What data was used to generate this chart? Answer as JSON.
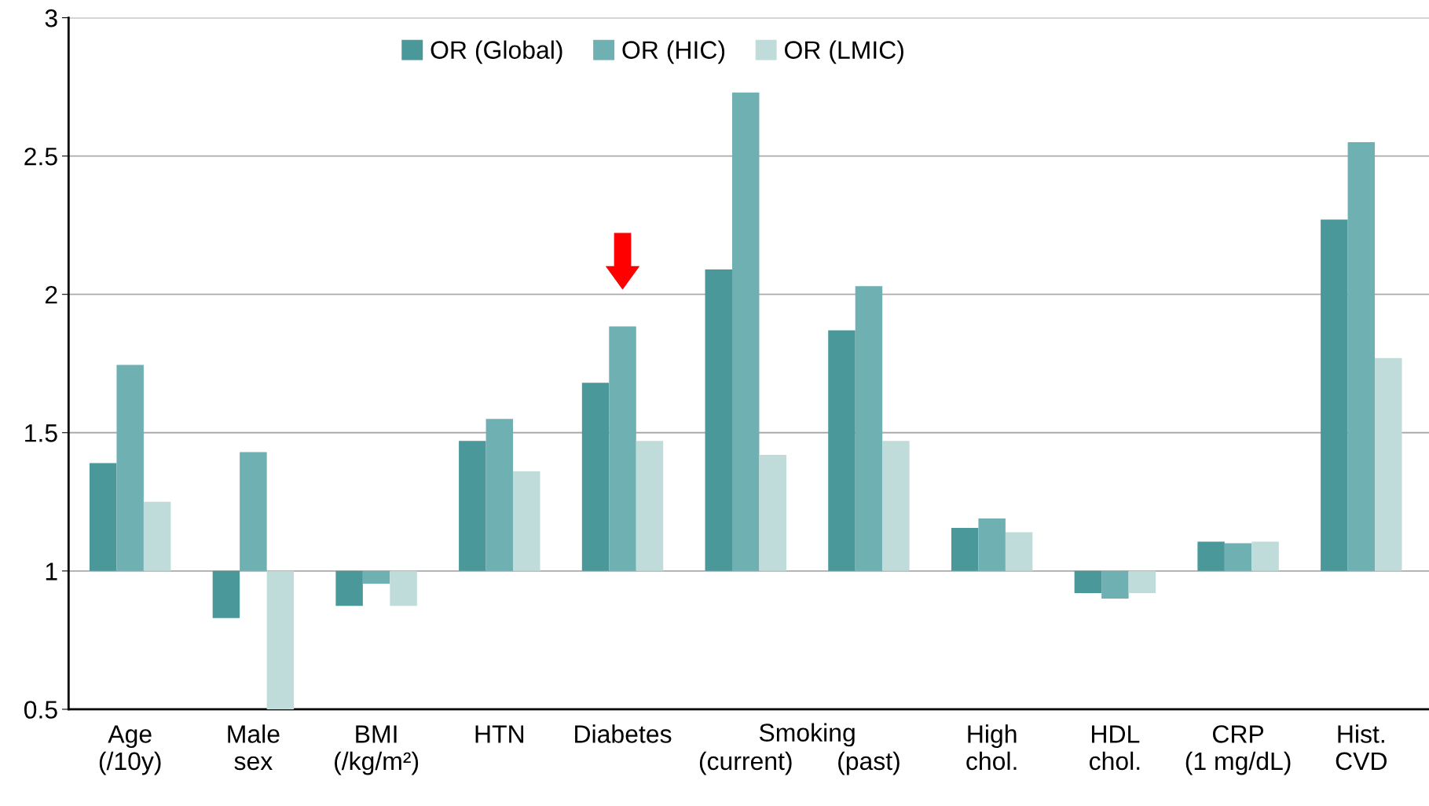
{
  "chart_data": {
    "type": "bar",
    "categories": [
      "Age\n(/10y)",
      "Male\nsex",
      "BMI\n(/kg/m²)",
      "HTN",
      "Diabetes",
      "\n(current)",
      "\n(past)",
      "High\nchol.",
      "HDL\nchol.",
      "CRP\n(1 mg/dL)",
      "Hist.\nCVD"
    ],
    "series": [
      {
        "name": "OR (Global)",
        "color": "#4a9899",
        "base": [
          1,
          1,
          1,
          1,
          1,
          1,
          1,
          1,
          1,
          1,
          1
        ],
        "values": [
          0.39,
          -0.17,
          -0.126,
          0.47,
          0.68,
          1.09,
          0.87,
          0.156,
          -0.08,
          0.106,
          1.27
        ]
      },
      {
        "name": "OR (HIC)",
        "color": "#6fb0b3",
        "base": [
          1,
          1,
          1,
          1,
          1,
          1,
          1,
          1,
          1,
          1,
          1
        ],
        "values": [
          0.745,
          0.43,
          -0.046,
          0.55,
          0.884,
          1.73,
          1.03,
          0.19,
          -0.1,
          0.1,
          1.55
        ]
      },
      {
        "name": "OR (LMIC)",
        "color": "#c0dcda",
        "base": [
          1,
          1,
          1,
          1,
          1,
          1,
          1,
          1,
          1,
          1,
          1
        ],
        "values": [
          0.25,
          -0.5,
          -0.126,
          0.36,
          0.47,
          0.42,
          0.47,
          0.14,
          -0.08,
          0.106,
          0.77
        ]
      }
    ],
    "annotations": [
      "Smoking"
    ],
    "ylim": [
      0.5,
      3
    ],
    "yticks": [
      0.5,
      1,
      1.5,
      2,
      2.5,
      3
    ],
    "grid": "y",
    "legend": "top"
  }
}
